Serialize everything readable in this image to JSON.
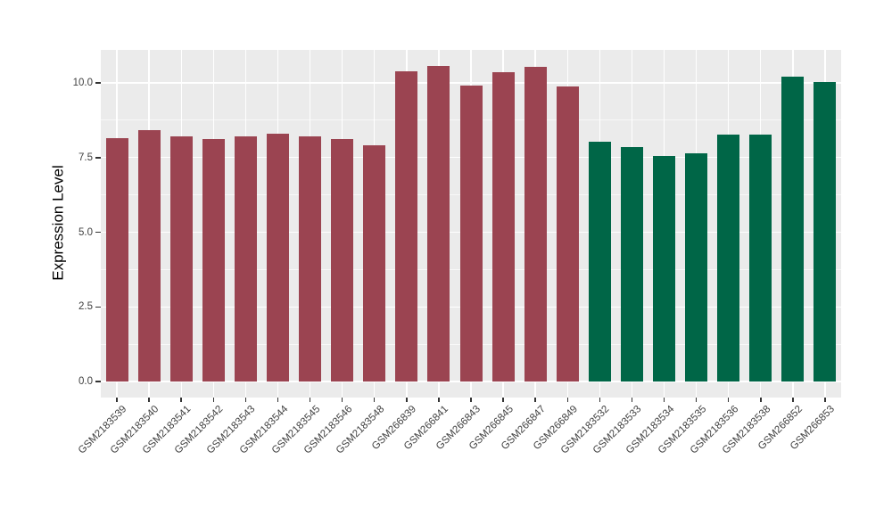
{
  "chart_data": {
    "type": "bar",
    "title": "",
    "xlabel": "",
    "ylabel": "Expression Level",
    "categories": [
      "GSM2183539",
      "GSM2183540",
      "GSM2183541",
      "GSM2183542",
      "GSM2183543",
      "GSM2183544",
      "GSM2183545",
      "GSM2183546",
      "GSM2183548",
      "GSM266839",
      "GSM266841",
      "GSM266843",
      "GSM266845",
      "GSM266847",
      "GSM266849",
      "GSM2183532",
      "GSM2183533",
      "GSM2183534",
      "GSM2183535",
      "GSM2183536",
      "GSM2183538",
      "GSM266852",
      "GSM266853"
    ],
    "values": [
      8.15,
      8.42,
      8.22,
      8.12,
      8.22,
      8.3,
      8.22,
      8.12,
      7.9,
      10.39,
      10.57,
      9.91,
      10.36,
      10.55,
      9.87,
      8.03,
      7.86,
      7.56,
      7.64,
      8.27,
      8.27,
      10.21,
      10.03
    ],
    "bar_colors": [
      "#9B4451",
      "#9B4451",
      "#9B4451",
      "#9B4451",
      "#9B4451",
      "#9B4451",
      "#9B4451",
      "#9B4451",
      "#9B4451",
      "#9B4451",
      "#9B4451",
      "#9B4451",
      "#9B4451",
      "#9B4451",
      "#9B4451",
      "#006647",
      "#006647",
      "#006647",
      "#006647",
      "#006647",
      "#006647",
      "#006647",
      "#006647"
    ],
    "group_colors": {
      "maroon_group": "#9B4451",
      "green_group": "#006647"
    },
    "ytick_labels": [
      "0.0",
      "2.5",
      "5.0",
      "7.5",
      "10.0"
    ],
    "ytick_values": [
      0,
      2.5,
      5,
      7.5,
      10
    ],
    "yminor_values": [
      1.25,
      3.75,
      6.25,
      8.75
    ],
    "ylim": [
      0,
      11.1
    ],
    "grid": "major and minor horizontal, vertical at each category",
    "legend_position": "none",
    "panel_background": "#EBEBEB",
    "grid_color": "#FFFFFF",
    "axis_text_color": "#404040",
    "tick_mark_color": "#333333"
  }
}
